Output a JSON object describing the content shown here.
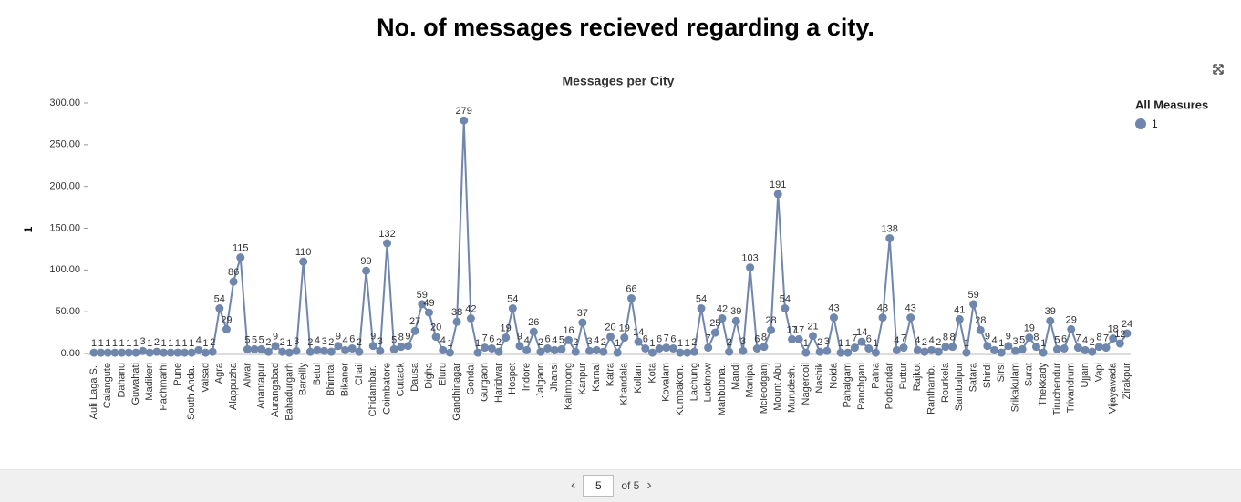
{
  "chart_data": {
    "type": "line",
    "title": "No. of  messages recieved regarding a city.",
    "subtitle": "Messages per City",
    "y_label": "1",
    "legend_title": "All Measures",
    "legend_position": "top-right",
    "series": [
      {
        "name": "1",
        "color": "#6f86ad",
        "values": [
          1,
          1,
          1,
          1,
          1,
          1,
          1,
          3,
          1,
          2,
          1,
          1,
          1,
          1,
          1,
          4,
          1,
          2,
          54,
          29,
          86,
          115,
          5,
          5,
          5,
          2,
          9,
          2,
          1,
          3,
          110,
          2,
          4,
          3,
          2,
          9,
          4,
          6,
          2,
          99,
          9,
          3,
          132,
          5,
          8,
          9,
          27,
          59,
          49,
          20,
          4,
          1,
          38,
          279,
          42,
          1,
          7,
          6,
          2,
          19,
          54,
          9,
          4,
          26,
          2,
          6,
          4,
          5,
          16,
          2,
          37,
          3,
          4,
          2,
          20,
          1,
          19,
          66,
          14,
          6,
          1,
          6,
          7,
          6,
          1,
          1,
          2,
          54,
          7,
          25,
          42,
          2,
          39,
          3,
          103,
          6,
          8,
          28,
          191,
          54,
          17,
          17,
          1,
          21,
          2,
          3,
          43,
          1,
          1,
          7,
          14,
          6,
          1,
          43,
          138,
          4,
          7,
          43,
          4,
          2,
          4,
          2,
          8,
          8,
          41,
          1,
          59,
          28,
          9,
          4,
          1,
          9,
          3,
          5,
          19,
          8,
          1,
          39,
          5,
          6,
          29,
          7,
          4,
          2,
          8,
          7,
          18,
          12,
          24
        ]
      }
    ],
    "categories": [
      "Auli Laga S..",
      null,
      "Calangute",
      null,
      "Dahanu",
      null,
      "Guwahati",
      null,
      "Madikeri",
      null,
      "Pachmarhi",
      null,
      "Pune",
      null,
      "South Anda..",
      null,
      "Valsad",
      null,
      "Agra",
      null,
      "Alappuzha",
      null,
      "Alwar",
      null,
      "Anantapur",
      null,
      "Aurangabad",
      null,
      "Bahadurgarh",
      null,
      "Bareilly",
      null,
      "Betul",
      null,
      "Bhimtal",
      null,
      "Bikaner",
      null,
      "Chail",
      null,
      "Chidambar..",
      null,
      "Coimbatore",
      null,
      "Cuttack",
      null,
      "Dausa",
      null,
      "Digha",
      null,
      "Eluru",
      null,
      "Gandhinagar",
      null,
      "Gondal",
      null,
      "Gurgaon",
      null,
      "Haridwar",
      null,
      "Hospet",
      null,
      "Indore",
      null,
      "Jalgaon",
      null,
      "Jhansi",
      null,
      "Kalimpong",
      null,
      "Kanpur",
      null,
      "Karnal",
      null,
      "Katra",
      null,
      "Khandala",
      null,
      "Kollam",
      null,
      "Kota",
      null,
      "Kovalam",
      null,
      "Kumbakon..",
      null,
      "Lachung",
      null,
      "Lucknow",
      null,
      "Mahbubna..",
      null,
      "Mandi",
      null,
      "Manipal",
      null,
      "Mcleodganj",
      null,
      "Mount Abu",
      null,
      "Murudesh..",
      null,
      "Nagercoil",
      null,
      "Nashik",
      null,
      "Noida",
      null,
      "Pahalgam",
      null,
      "Panchgani",
      null,
      "Patna",
      null,
      "Porbandar",
      null,
      "Puttur",
      null,
      "Rajkot",
      null,
      "Ranthamb..",
      null,
      "Rourkela",
      null,
      "Sambalpur",
      null,
      "Satara",
      null,
      "Shirdi",
      null,
      "Sirsi",
      null,
      "Srikakulam",
      null,
      "Surat",
      null,
      "Thekkady",
      null,
      "Tiruchendur",
      null,
      "Trivandrum",
      null,
      "Ujjain",
      null,
      "Vapi",
      null,
      "Vijayawada",
      null,
      "Zirakpur"
    ],
    "ylim": [
      0,
      300
    ],
    "yticks": [
      {
        "value": 0,
        "label": "0.00"
      },
      {
        "value": 50,
        "label": "50.00"
      },
      {
        "value": 100,
        "label": "100.00"
      },
      {
        "value": 150,
        "label": "150.00"
      },
      {
        "value": 200,
        "label": "200.00"
      },
      {
        "value": 250,
        "label": "250.00"
      },
      {
        "value": 300,
        "label": "300.00"
      }
    ],
    "grid": false
  },
  "pagination": {
    "page": "5",
    "of": "of 5"
  }
}
